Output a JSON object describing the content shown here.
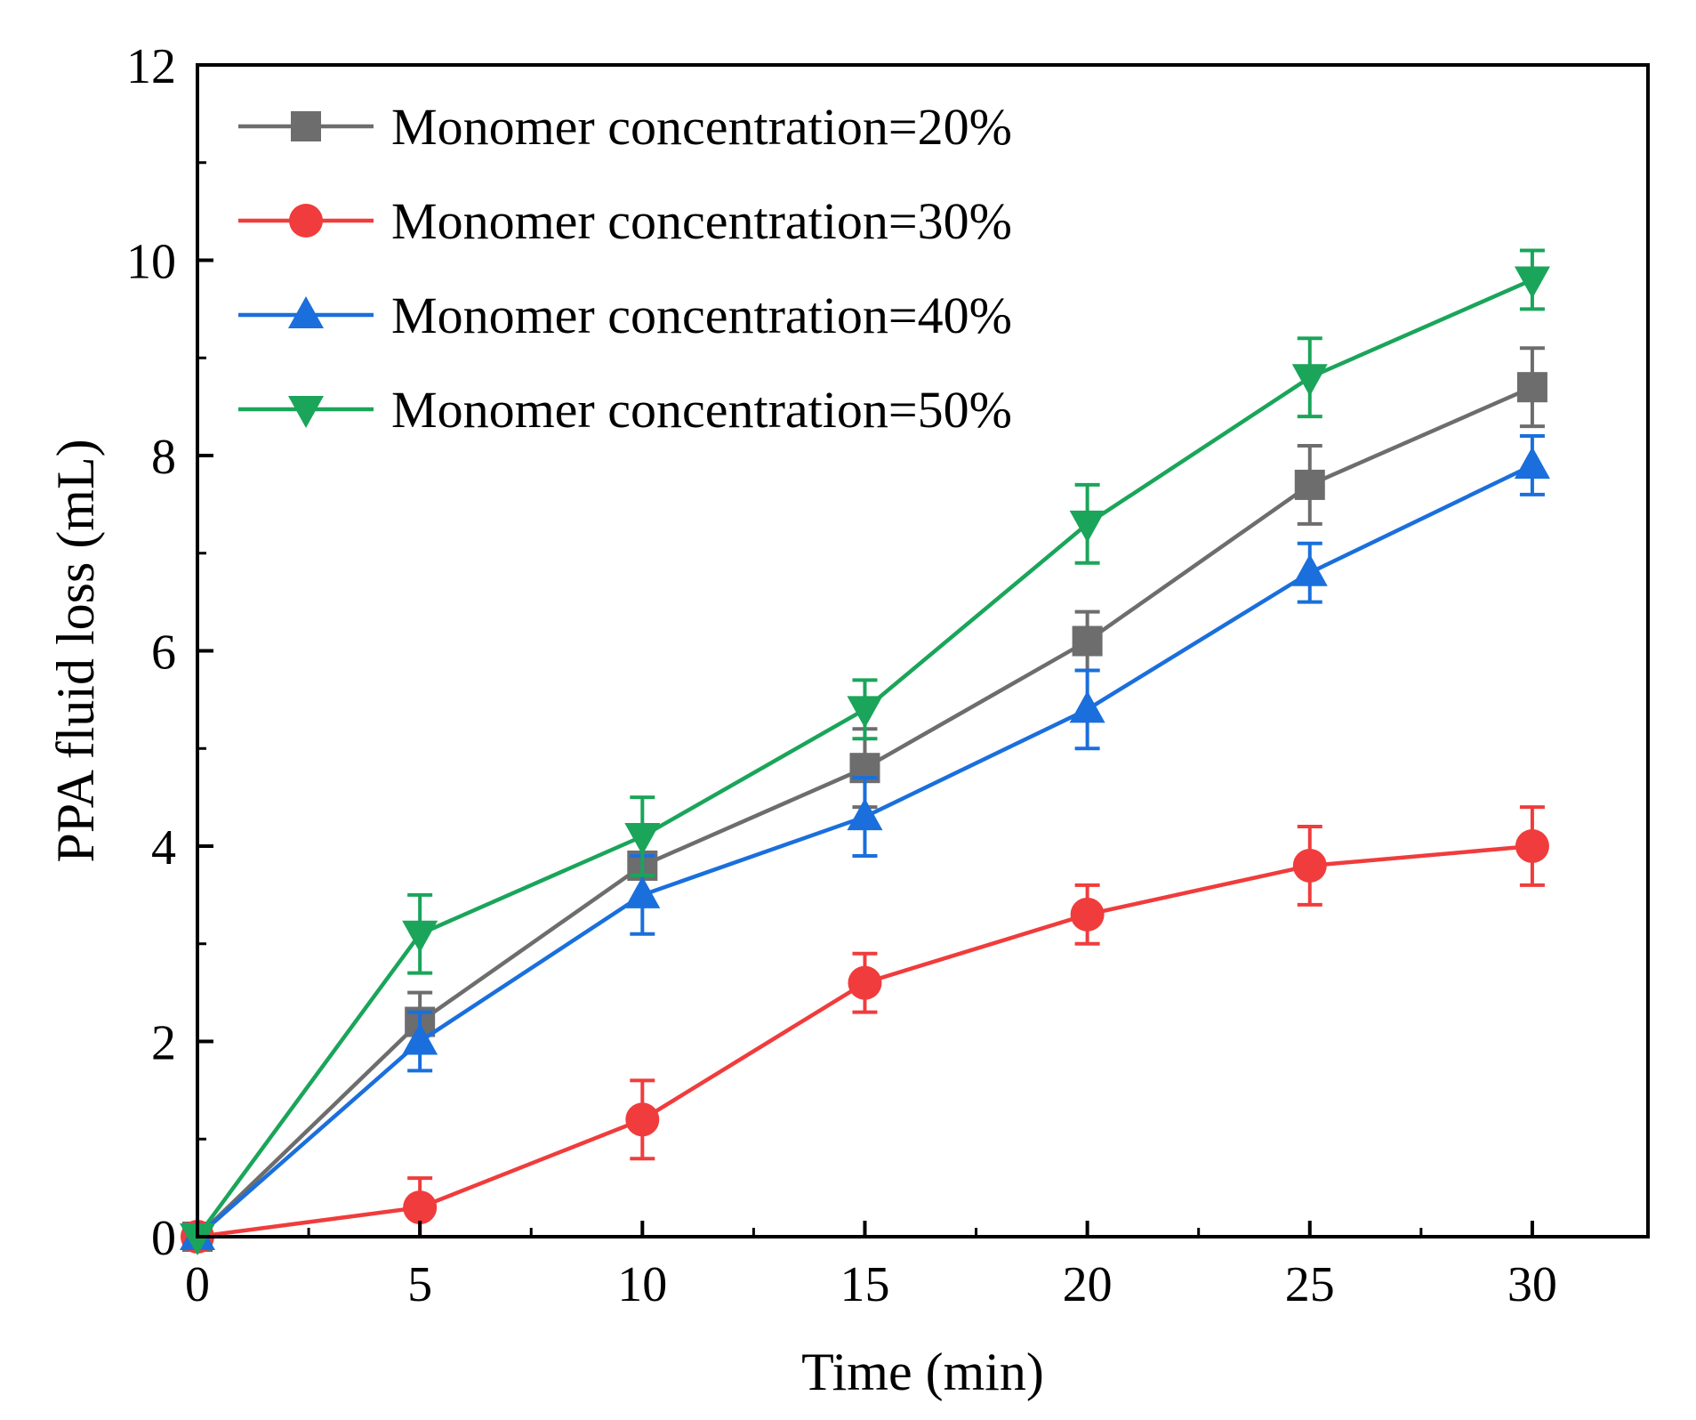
{
  "chart_data": {
    "type": "line",
    "xlabel": "Time (min)",
    "ylabel": "PPA fluid loss (mL)",
    "xlim": [
      0,
      32.6
    ],
    "ylim": [
      0,
      12
    ],
    "x_ticks": [
      0,
      5,
      10,
      15,
      20,
      25,
      30
    ],
    "y_ticks": [
      0,
      2,
      4,
      6,
      8,
      10,
      12
    ],
    "x": [
      0,
      5,
      10,
      15,
      20,
      25,
      30
    ],
    "grid": false,
    "legend_position": "top-left",
    "series": [
      {
        "name": "Monomer concentration=20%",
        "color": "#6d6d6d",
        "marker": "square",
        "values": [
          0,
          2.2,
          3.8,
          4.8,
          6.1,
          7.7,
          8.7
        ],
        "errors": [
          0,
          0.3,
          0.1,
          0.4,
          0.3,
          0.4,
          0.4
        ]
      },
      {
        "name": "Monomer concentration=30%",
        "color": "#f03c3c",
        "marker": "circle",
        "values": [
          0,
          0.3,
          1.2,
          2.6,
          3.3,
          3.8,
          4.0
        ],
        "errors": [
          0,
          0.3,
          0.4,
          0.3,
          0.3,
          0.4,
          0.4
        ]
      },
      {
        "name": "Monomer concentration=40%",
        "color": "#1a6fdc",
        "marker": "triangle-up",
        "values": [
          0,
          2.0,
          3.5,
          4.3,
          5.4,
          6.8,
          7.9
        ],
        "errors": [
          0,
          0.3,
          0.4,
          0.4,
          0.4,
          0.3,
          0.3
        ]
      },
      {
        "name": "Monomer concentration=50%",
        "color": "#1aa55a",
        "marker": "triangle-down",
        "values": [
          0,
          3.1,
          4.1,
          5.4,
          7.3,
          8.8,
          9.8
        ],
        "errors": [
          0,
          0.4,
          0.4,
          0.3,
          0.4,
          0.4,
          0.3
        ]
      }
    ]
  }
}
